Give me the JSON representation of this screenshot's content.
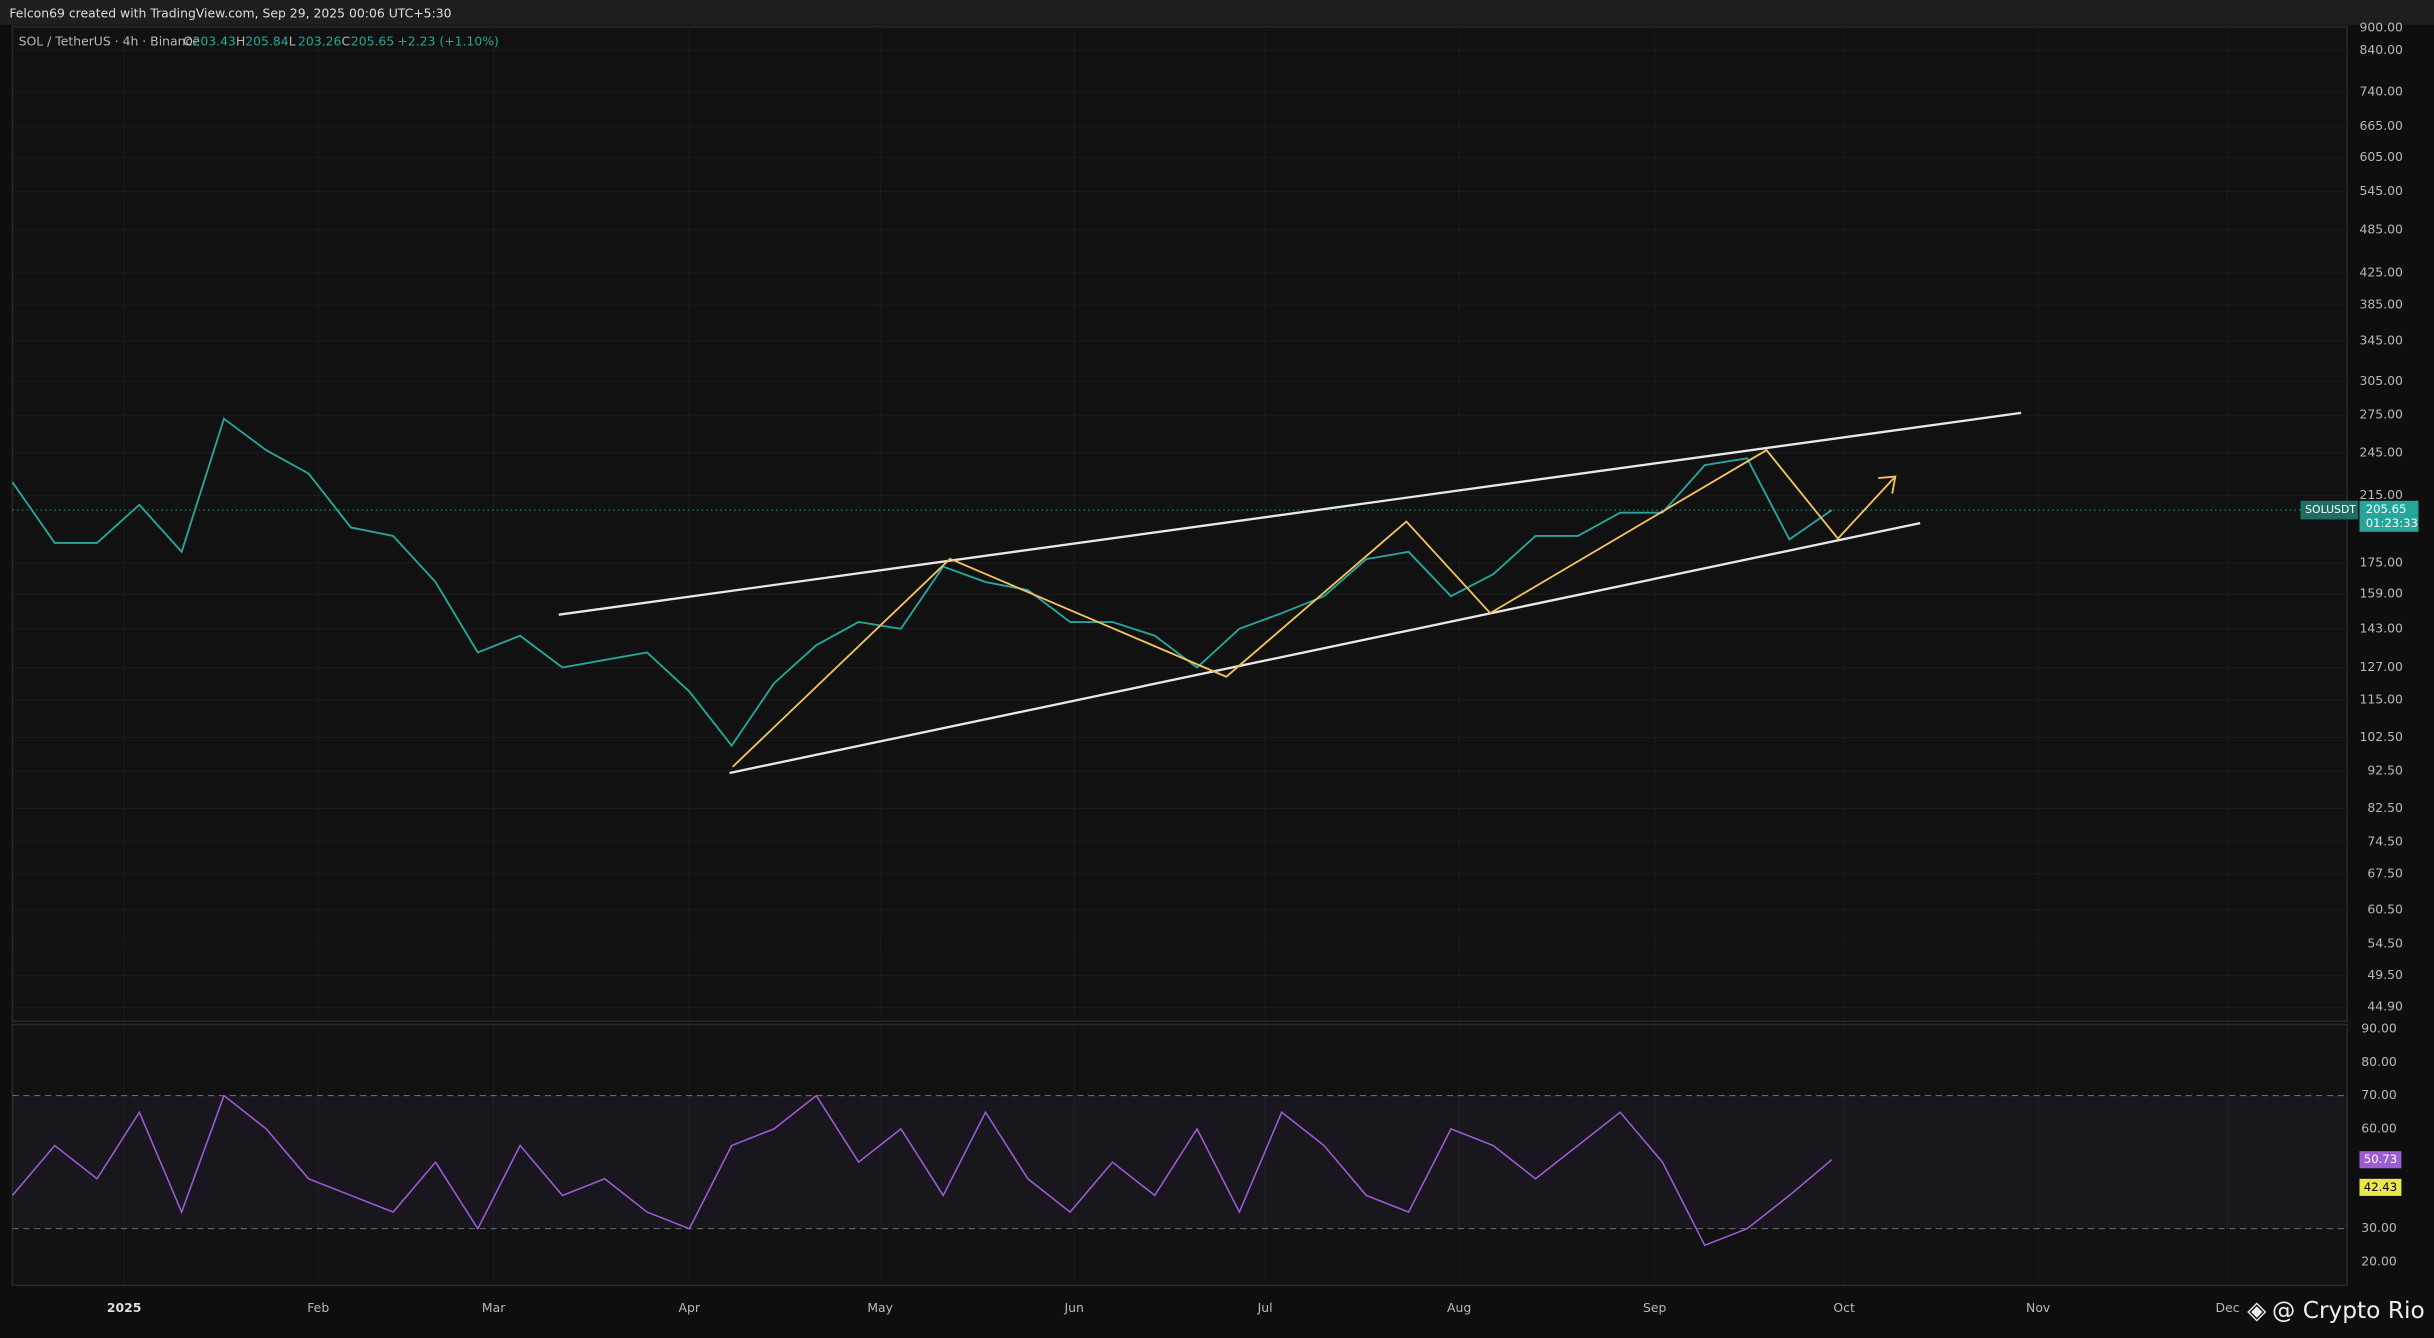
{
  "header": {
    "title": "Felcon69 created with TradingView.com, Sep 29, 2025 00:06 UTC+5:30"
  },
  "legend": {
    "symbol": "SOL / TetherUS · 4h · Binance",
    "items": [
      {
        "label": "O",
        "value": "203.43"
      },
      {
        "label": "H",
        "value": "205.84"
      },
      {
        "label": "L",
        "value": "203.26"
      },
      {
        "label": "C",
        "value": "205.65"
      }
    ],
    "change": "+2.23 (+1.10%)"
  },
  "price_pane": {
    "ylim": [
      43,
      904
    ],
    "log_scale": true,
    "yticks": [
      {
        "value": 900,
        "label": "900.00"
      },
      {
        "value": 840,
        "label": "840.00"
      },
      {
        "value": 740,
        "label": "740.00"
      },
      {
        "value": 665,
        "label": "665.00"
      },
      {
        "value": 605,
        "label": "605.00"
      },
      {
        "value": 545,
        "label": "545.00"
      },
      {
        "value": 485,
        "label": "485.00"
      },
      {
        "value": 425,
        "label": "425.00"
      },
      {
        "value": 385,
        "label": "385.00"
      },
      {
        "value": 345,
        "label": "345.00"
      },
      {
        "value": 305,
        "label": "305.00"
      },
      {
        "value": 275,
        "label": "275.00"
      },
      {
        "value": 245,
        "label": "245.00"
      },
      {
        "value": 215,
        "label": "215.00"
      },
      {
        "value": 175,
        "label": "175.00"
      },
      {
        "value": 159,
        "label": "159.00"
      },
      {
        "value": 143,
        "label": "143.00"
      },
      {
        "value": 127,
        "label": "127.00"
      },
      {
        "value": 115,
        "label": "115.00"
      },
      {
        "value": 102.5,
        "label": "102.50"
      },
      {
        "value": 92.5,
        "label": "92.50"
      },
      {
        "value": 82.5,
        "label": "82.50"
      },
      {
        "value": 74.5,
        "label": "74.50"
      },
      {
        "value": 67.5,
        "label": "67.50"
      },
      {
        "value": 60.5,
        "label": "60.50"
      },
      {
        "value": 54.5,
        "label": "54.50"
      },
      {
        "value": 49.5,
        "label": "49.50"
      },
      {
        "value": 44.9,
        "label": "44.90"
      }
    ],
    "series": {
      "color": "#26a69a",
      "values": [
        224,
        186,
        186,
        209,
        181,
        272,
        247,
        230,
        195,
        190,
        165,
        133,
        140,
        127,
        130,
        133,
        118,
        100,
        121,
        136,
        146,
        143,
        173,
        165,
        161,
        146,
        146,
        140,
        127,
        143,
        150,
        158,
        177,
        181,
        158,
        169,
        190,
        190,
        204,
        204,
        236,
        241,
        188,
        205.65
      ]
    },
    "badge": {
      "symbol": "SOLUSDT",
      "price": "205.65",
      "countdown": "01:23:33",
      "value": 205.65
    }
  },
  "rsi_pane": {
    "ylim": [
      13,
      91.4
    ],
    "yticks": [
      {
        "value": 90,
        "label": "90.00"
      },
      {
        "value": 80,
        "label": "80.00"
      },
      {
        "value": 70,
        "label": "70.00"
      },
      {
        "value": 60,
        "label": "60.00"
      },
      {
        "value": 30,
        "label": "30.00"
      },
      {
        "value": 20,
        "label": "20.00"
      }
    ],
    "series": {
      "color": "#9c5cd6",
      "values": [
        40,
        55,
        45,
        65,
        35,
        70,
        60,
        45,
        40,
        35,
        50,
        30,
        55,
        40,
        45,
        35,
        30,
        55,
        60,
        70,
        50,
        60,
        40,
        65,
        45,
        35,
        50,
        40,
        60,
        35,
        65,
        55,
        40,
        35,
        60,
        55,
        45,
        55,
        65,
        50,
        25,
        30,
        40,
        50.73
      ]
    },
    "badges": [
      {
        "label": "50.73",
        "value": 50.73,
        "color": "#9c5cd6"
      },
      {
        "label": "42.43",
        "value": 42.43,
        "color": "#e8e84a"
      }
    ]
  },
  "time_axis": {
    "labels": [
      "2025",
      "Feb",
      "Mar",
      "Apr",
      "May",
      "Jun",
      "Jul",
      "Aug",
      "Sep",
      "Oct",
      "Nov",
      "Dec"
    ]
  },
  "watermark": "@ Crypto Rio"
}
